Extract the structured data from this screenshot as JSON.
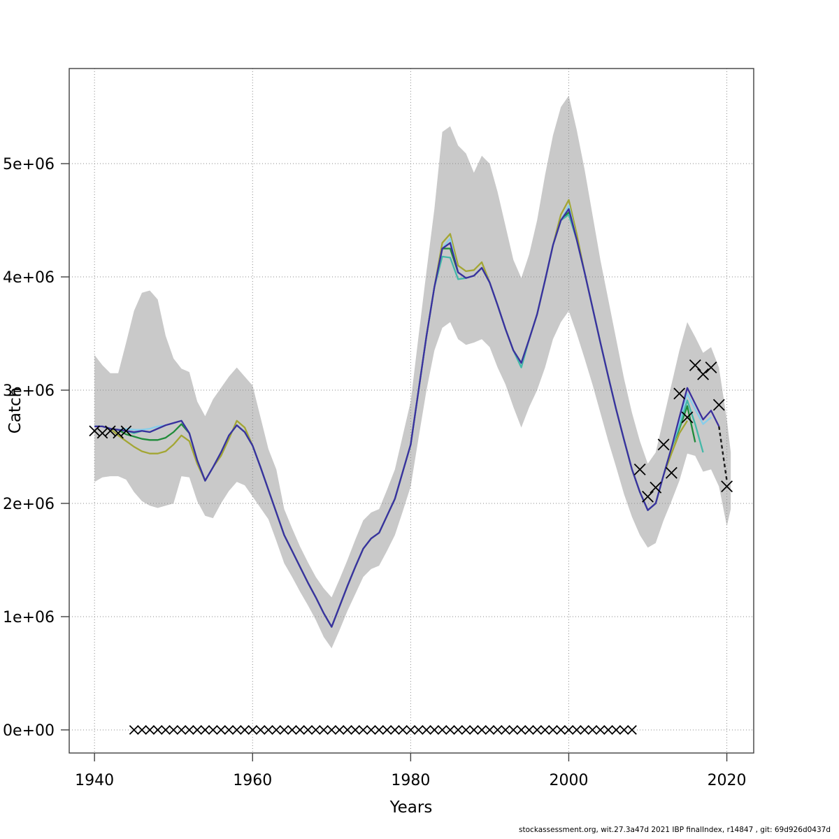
{
  "page": {
    "background": "#ffffff"
  },
  "footer": {
    "text": "stockassessment.org, wit.27.3a47d 2021 IBP finalIndex, r14847 , git: 69d926d0437d"
  },
  "chart_data": {
    "type": "line",
    "title": "",
    "xlabel": "Years",
    "ylabel": "Catch",
    "grid": "dotted",
    "legend": "none",
    "xlim": [
      1936.8,
      2023.4
    ],
    "ylim_millions": [
      -0.204,
      5.84
    ],
    "xticks": [
      1940,
      1960,
      1980,
      2000,
      2020
    ],
    "yticks": [
      {
        "value": 0,
        "label": "0e+00"
      },
      {
        "value": 1,
        "label": "1e+06"
      },
      {
        "value": 2,
        "label": "2e+06"
      },
      {
        "value": 3,
        "label": "3e+06"
      },
      {
        "value": 4,
        "label": "4e+06"
      },
      {
        "value": 5,
        "label": "5e+06"
      }
    ],
    "band": {
      "color": "#c9c9c9",
      "points": [
        [
          1940,
          2.19,
          3.31
        ],
        [
          1941,
          2.23,
          3.22
        ],
        [
          1942,
          2.24,
          3.15
        ],
        [
          1943,
          2.24,
          3.15
        ],
        [
          1944,
          2.21,
          3.42
        ],
        [
          1945,
          2.1,
          3.7
        ],
        [
          1946,
          2.02,
          3.86
        ],
        [
          1947,
          1.98,
          3.88
        ],
        [
          1948,
          1.96,
          3.8
        ],
        [
          1949,
          1.98,
          3.48
        ],
        [
          1950,
          2.0,
          3.28
        ],
        [
          1951,
          2.24,
          3.19
        ],
        [
          1952,
          2.23,
          3.16
        ],
        [
          1953,
          2.02,
          2.9
        ],
        [
          1954,
          1.89,
          2.77
        ],
        [
          1955,
          1.87,
          2.92
        ],
        [
          1956,
          2.0,
          3.02
        ],
        [
          1957,
          2.11,
          3.12
        ],
        [
          1958,
          2.19,
          3.2
        ],
        [
          1959,
          2.16,
          3.12
        ],
        [
          1960,
          2.06,
          3.04
        ],
        [
          1961,
          1.96,
          2.76
        ],
        [
          1962,
          1.86,
          2.48
        ],
        [
          1963,
          1.67,
          2.3
        ],
        [
          1964,
          1.47,
          1.95
        ],
        [
          1965,
          1.35,
          1.78
        ],
        [
          1966,
          1.22,
          1.62
        ],
        [
          1967,
          1.1,
          1.48
        ],
        [
          1968,
          0.97,
          1.35
        ],
        [
          1969,
          0.82,
          1.25
        ],
        [
          1970,
          0.72,
          1.17
        ],
        [
          1971,
          0.88,
          1.33
        ],
        [
          1972,
          1.05,
          1.5
        ],
        [
          1973,
          1.2,
          1.68
        ],
        [
          1974,
          1.35,
          1.85
        ],
        [
          1975,
          1.42,
          1.92
        ],
        [
          1976,
          1.45,
          1.95
        ],
        [
          1977,
          1.58,
          2.12
        ],
        [
          1978,
          1.72,
          2.3
        ],
        [
          1979,
          1.93,
          2.6
        ],
        [
          1980,
          2.15,
          2.9
        ],
        [
          1981,
          2.58,
          3.48
        ],
        [
          1982,
          3.0,
          4.05
        ],
        [
          1983,
          3.35,
          4.6
        ],
        [
          1984,
          3.55,
          5.28
        ],
        [
          1985,
          3.6,
          5.33
        ],
        [
          1986,
          3.45,
          5.16
        ],
        [
          1987,
          3.4,
          5.09
        ],
        [
          1988,
          3.42,
          4.92
        ],
        [
          1989,
          3.45,
          5.07
        ],
        [
          1990,
          3.38,
          5.0
        ],
        [
          1991,
          3.2,
          4.75
        ],
        [
          1992,
          3.05,
          4.45
        ],
        [
          1993,
          2.85,
          4.15
        ],
        [
          1994,
          2.67,
          3.99
        ],
        [
          1995,
          2.85,
          4.2
        ],
        [
          1996,
          3.0,
          4.5
        ],
        [
          1997,
          3.2,
          4.9
        ],
        [
          1998,
          3.45,
          5.25
        ],
        [
          1999,
          3.6,
          5.5
        ],
        [
          2000,
          3.7,
          5.6
        ],
        [
          2001,
          3.5,
          5.3
        ],
        [
          2002,
          3.28,
          4.95
        ],
        [
          2003,
          3.05,
          4.55
        ],
        [
          2004,
          2.8,
          4.15
        ],
        [
          2005,
          2.55,
          3.8
        ],
        [
          2006,
          2.32,
          3.45
        ],
        [
          2007,
          2.08,
          3.1
        ],
        [
          2008,
          1.88,
          2.8
        ],
        [
          2009,
          1.72,
          2.55
        ],
        [
          2010,
          1.61,
          2.35
        ],
        [
          2011,
          1.65,
          2.45
        ],
        [
          2012,
          1.85,
          2.75
        ],
        [
          2013,
          2.02,
          3.05
        ],
        [
          2014,
          2.2,
          3.35
        ],
        [
          2015,
          2.44,
          3.6
        ],
        [
          2016,
          2.42,
          3.47
        ],
        [
          2017,
          2.28,
          3.33
        ],
        [
          2018,
          2.3,
          3.38
        ],
        [
          2019,
          2.15,
          3.2
        ],
        [
          2020,
          1.8,
          2.74
        ],
        [
          2020.5,
          1.95,
          2.45
        ]
      ]
    },
    "start_year": 1940,
    "base_values_millions": [
      2.68,
      2.68,
      2.66,
      2.65,
      2.64,
      2.62,
      2.62,
      2.63,
      2.66,
      2.69,
      2.71,
      2.73,
      2.62,
      2.38,
      2.2,
      2.32,
      2.45,
      2.6,
      2.69,
      2.63,
      2.51,
      2.32,
      2.12,
      1.92,
      1.72,
      1.58,
      1.44,
      1.3,
      1.17,
      1.03,
      0.91,
      1.09,
      1.27,
      1.44,
      1.6,
      1.69,
      1.74,
      1.89,
      2.04,
      2.28,
      2.52,
      3.0,
      3.48,
      3.91,
      4.25,
      4.31,
      4.04,
      3.99,
      4.01,
      4.08,
      3.95,
      3.75,
      3.54,
      3.35,
      3.24,
      3.45,
      3.67,
      3.97,
      4.28,
      4.5,
      4.62,
      4.33,
      4.04,
      3.73,
      3.42,
      3.12,
      2.83,
      2.56,
      2.3,
      2.1,
      1.94,
      2.0,
      2.25,
      2.49,
      2.74,
      2.99,
      2.86,
      2.74,
      2.8,
      2.69
    ],
    "series": [
      {
        "name": "olive",
        "color": "#a3a633",
        "end_year": 2015,
        "overrides": {
          "1943": 2.6,
          "1944": 2.55,
          "1945": 2.5,
          "1946": 2.46,
          "1947": 2.44,
          "1948": 2.44,
          "1949": 2.46,
          "1950": 2.52,
          "1951": 2.6,
          "1952": 2.55,
          "1953": 2.35,
          "1956": 2.42,
          "1957": 2.57,
          "1958": 2.73,
          "1959": 2.67,
          "1984": 4.3,
          "1985": 4.38,
          "1986": 4.1,
          "1987": 4.05,
          "1988": 4.06,
          "1989": 4.13,
          "1999": 4.55,
          "2000": 4.68,
          "2001": 4.38,
          "2013": 2.44,
          "2014": 2.62,
          "2015": 2.73
        }
      },
      {
        "name": "green",
        "color": "#1f8b3a",
        "end_year": 2016,
        "overrides": {
          "1944": 2.61,
          "1945": 2.59,
          "1946": 2.57,
          "1947": 2.56,
          "1948": 2.56,
          "1949": 2.58,
          "1950": 2.63,
          "1951": 2.7,
          "1985": 4.25,
          "2000": 4.57,
          "2014": 2.66,
          "2015": 2.86,
          "2016": 2.54
        }
      },
      {
        "name": "teal",
        "color": "#44b8a8",
        "end_year": 2017,
        "overrides": {
          "1946": 2.64,
          "1984": 4.18,
          "1985": 4.17,
          "1986": 3.98,
          "1994": 3.2,
          "2000": 4.55,
          "2014": 2.68,
          "2015": 2.91,
          "2016": 2.7,
          "2017": 2.45
        }
      },
      {
        "name": "skyblue",
        "color": "#87ceeb",
        "end_year": 2018,
        "overrides": {
          "1944": 2.66,
          "1945": 2.65,
          "1946": 2.65,
          "1947": 2.66,
          "1948": 2.68,
          "1985": 4.34,
          "2000": 4.63,
          "2014": 2.72,
          "2015": 2.97,
          "2016": 2.83,
          "2017": 2.7,
          "2018": 2.76
        }
      },
      {
        "name": "navy",
        "color": "#3b2f9d",
        "end_year": 2019,
        "overrides": {
          "1945": 2.63,
          "1946": 2.64,
          "1985": 4.3,
          "2000": 4.6,
          "2014": 2.76,
          "2015": 3.02,
          "2016": 2.88,
          "2017": 2.74,
          "2018": 2.82,
          "2019": 2.68
        }
      }
    ],
    "forecast": {
      "color": "#1a1a1a",
      "dash": "5 4",
      "points_millions": [
        [
          2019,
          2.68
        ],
        [
          2020,
          2.2
        ]
      ]
    },
    "observations": {
      "marker": "x",
      "color": "#000000",
      "left_points_millions": [
        [
          1940,
          2.64
        ],
        [
          1941,
          2.62
        ],
        [
          1942,
          2.64
        ],
        [
          1943,
          2.62
        ],
        [
          1944,
          2.64
        ]
      ],
      "zero_run": {
        "start_year": 1945,
        "end_year": 2008,
        "value": 0
      },
      "right_points_millions": [
        [
          2009,
          2.3
        ],
        [
          2010,
          2.06
        ],
        [
          2011,
          2.14
        ],
        [
          2012,
          2.52
        ],
        [
          2013,
          2.27
        ],
        [
          2014,
          2.97
        ],
        [
          2015,
          2.76
        ],
        [
          2016,
          3.22
        ],
        [
          2017,
          3.14
        ],
        [
          2018,
          3.2
        ],
        [
          2019,
          2.87
        ],
        [
          2020,
          2.15
        ]
      ]
    }
  }
}
